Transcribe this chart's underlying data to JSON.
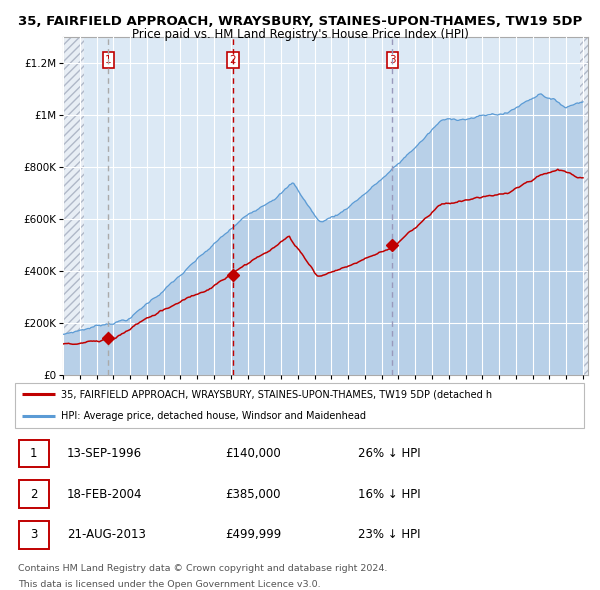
{
  "title_line1": "35, FAIRFIELD APPROACH, WRAYSBURY, STAINES-UPON-THAMES, TW19 5DP",
  "title_line2": "Price paid vs. HM Land Registry's House Price Index (HPI)",
  "y_ticks": [
    0,
    200000,
    400000,
    600000,
    800000,
    1000000,
    1200000
  ],
  "y_tick_labels": [
    "£0",
    "£200K",
    "£400K",
    "£600K",
    "£800K",
    "£1M",
    "£1.2M"
  ],
  "hpi_fill_color": "#b8d0e8",
  "hpi_line_color": "#5b9bd5",
  "price_color": "#c00000",
  "bg_color": "#dce9f5",
  "grid_color": "#ffffff",
  "legend_line1": "35, FAIRFIELD APPROACH, WRAYSBURY, STAINES-UPON-THAMES, TW19 5DP (detached h",
  "legend_line2": "HPI: Average price, detached house, Windsor and Maidenhead",
  "sale1_date": "13-SEP-1996",
  "sale1_price": "£140,000",
  "sale1_hpi": "26% ↓ HPI",
  "sale1_year": 1996.71,
  "sale1_value": 140000,
  "sale2_date": "18-FEB-2004",
  "sale2_price": "£385,000",
  "sale2_hpi": "16% ↓ HPI",
  "sale2_year": 2004.13,
  "sale2_value": 385000,
  "sale3_date": "21-AUG-2013",
  "sale3_price": "£499,999",
  "sale3_hpi": "23% ↓ HPI",
  "sale3_year": 2013.64,
  "sale3_value": 499999,
  "footnote1": "Contains HM Land Registry data © Crown copyright and database right 2024.",
  "footnote2": "This data is licensed under the Open Government Licence v3.0."
}
